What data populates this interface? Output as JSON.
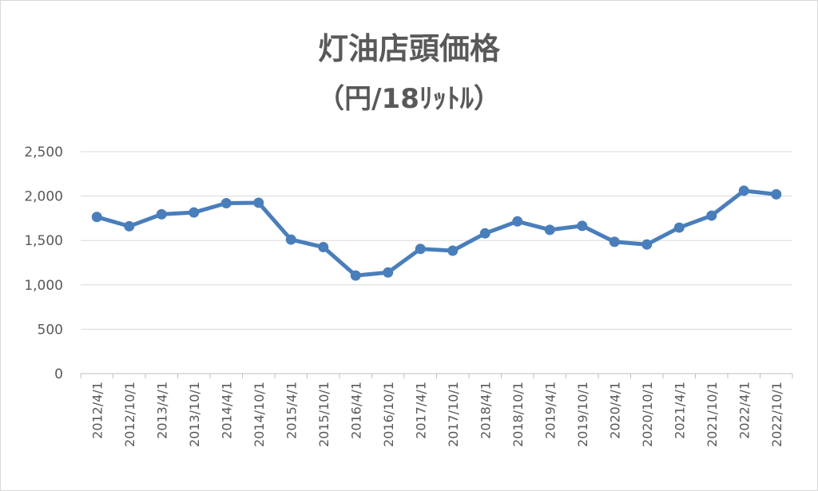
{
  "chart_data": {
    "type": "line",
    "title": "灯油店頭価格",
    "subtitle": "（円/18ﾘｯﾄﾙ）",
    "xlabel": "",
    "ylabel": "",
    "ylim": [
      0,
      2500
    ],
    "y_ticks": [
      "0",
      "500",
      "1,000",
      "1,500",
      "2,000",
      "2,500"
    ],
    "y_tick_values": [
      0,
      500,
      1000,
      1500,
      2000,
      2500
    ],
    "grid": true,
    "legend": "none",
    "series_color": "#4a7ebb",
    "categories": [
      "2012/4/1",
      "2012/10/1",
      "2013/4/1",
      "2013/10/1",
      "2014/4/1",
      "2014/10/1",
      "2015/4/1",
      "2015/10/1",
      "2016/4/1",
      "2016/10/1",
      "2017/4/1",
      "2017/10/1",
      "2018/4/1",
      "2018/10/1",
      "2019/4/1",
      "2019/10/1",
      "2020/4/1",
      "2020/10/1",
      "2021/4/1",
      "2021/10/1",
      "2022/4/1",
      "2022/10/1"
    ],
    "values": [
      1765,
      1660,
      1795,
      1815,
      1920,
      1925,
      1510,
      1425,
      1105,
      1140,
      1405,
      1385,
      1580,
      1715,
      1620,
      1665,
      1485,
      1455,
      1645,
      1780,
      2060,
      2020
    ]
  }
}
